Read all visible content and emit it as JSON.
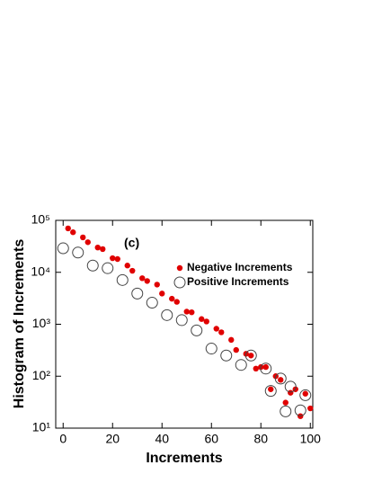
{
  "chart_data": {
    "type": "scatter",
    "annotation": "(c)",
    "x_label": "Increments",
    "y_label": "Histogram of Increments",
    "xlim": [
      -3,
      101
    ],
    "xticks": [
      0,
      20,
      40,
      60,
      80,
      100
    ],
    "ylim": [
      10,
      100000
    ],
    "yscale": "log",
    "yticks": [
      {
        "value": 10,
        "label": "10¹"
      },
      {
        "value": 100,
        "label": "10²"
      },
      {
        "value": 1000,
        "label": "10³"
      },
      {
        "value": 10000,
        "label": "10⁴"
      },
      {
        "value": 100000,
        "label": "10⁵"
      }
    ],
    "series": [
      {
        "name": "Negative Increments",
        "color": "#e00000",
        "marker": "filled",
        "x": [
          2,
          4,
          8,
          10,
          14,
          16,
          20,
          22,
          26,
          28,
          32,
          34,
          38,
          40,
          44,
          46,
          50,
          52,
          56,
          58,
          62,
          64,
          68,
          70,
          74,
          76,
          78,
          80,
          82,
          84,
          86,
          88,
          90,
          92,
          94,
          96,
          98,
          100
        ],
        "values": [
          70000,
          59000,
          47000,
          38000,
          30000,
          28000,
          18700,
          18000,
          13500,
          10700,
          7700,
          6800,
          5800,
          3900,
          3100,
          2700,
          1750,
          1700,
          1260,
          1130,
          820,
          700,
          500,
          320,
          270,
          250,
          140,
          150,
          150,
          56,
          100,
          85,
          31,
          48,
          56,
          17,
          46,
          24
        ]
      },
      {
        "name": "Positive Increments",
        "color": "#444444",
        "marker": "open",
        "x": [
          0,
          6,
          12,
          18,
          24,
          30,
          36,
          42,
          48,
          54,
          60,
          66,
          72,
          76,
          82,
          84,
          88,
          90,
          92,
          96,
          98
        ],
        "values": [
          29000,
          24000,
          13500,
          12000,
          7100,
          3900,
          2600,
          1500,
          1200,
          760,
          340,
          250,
          165,
          250,
          140,
          52,
          90,
          21,
          63,
          22,
          43
        ]
      }
    ],
    "legend": "upper right"
  }
}
